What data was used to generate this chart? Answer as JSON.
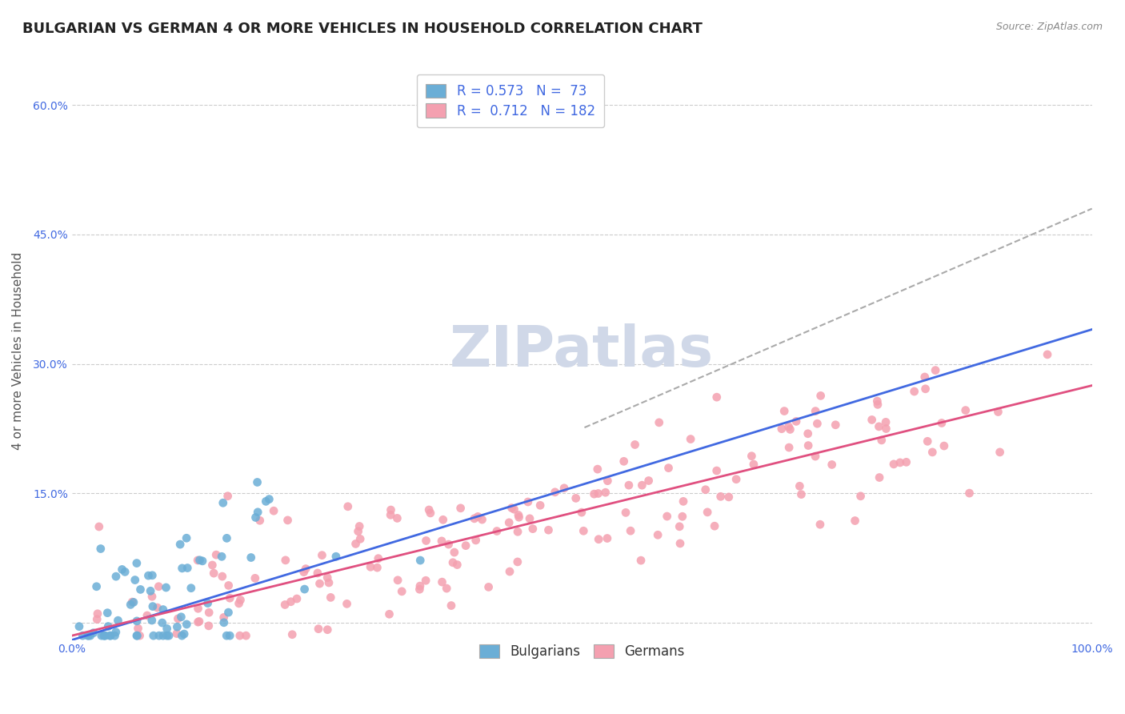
{
  "title": "BULGARIAN VS GERMAN 4 OR MORE VEHICLES IN HOUSEHOLD CORRELATION CHART",
  "source": "Source: ZipAtlas.com",
  "xlabel": "",
  "ylabel": "4 or more Vehicles in Household",
  "xlim": [
    0.0,
    1.0
  ],
  "ylim": [
    -0.02,
    0.65
  ],
  "x_ticks": [
    0.0,
    0.1,
    0.2,
    0.3,
    0.4,
    0.5,
    0.6,
    0.7,
    0.8,
    0.9,
    1.0
  ],
  "x_tick_labels": [
    "0.0%",
    "",
    "",
    "",
    "",
    "",
    "",
    "",
    "",
    "",
    "100.0%"
  ],
  "y_ticks": [
    0.0,
    0.15,
    0.3,
    0.45,
    0.6
  ],
  "y_tick_labels": [
    "",
    "15.0%",
    "30.0%",
    "45.0%",
    "60.0%"
  ],
  "watermark": "ZIPatlas",
  "legend_entries": [
    {
      "label": "R = 0.573   N =  73",
      "color": "#a8c8f0"
    },
    {
      "label": "R =  0.712   N = 182",
      "color": "#f0a8b8"
    }
  ],
  "blue_scatter_color": "#6baed6",
  "pink_scatter_color": "#f4a0b0",
  "blue_line_color": "#4169e1",
  "pink_line_color": "#e05080",
  "blue_R": 0.573,
  "blue_N": 73,
  "pink_R": 0.712,
  "pink_N": 182,
  "blue_line_intercept": -0.02,
  "blue_line_slope": 0.36,
  "pink_line_intercept": -0.015,
  "pink_line_slope": 0.29,
  "background_color": "#ffffff",
  "grid_color": "#cccccc",
  "title_color": "#333333",
  "watermark_color": "#d0d8e8",
  "watermark_fontsize": 52,
  "title_fontsize": 13,
  "label_fontsize": 11,
  "tick_fontsize": 10,
  "legend_fontsize": 12
}
